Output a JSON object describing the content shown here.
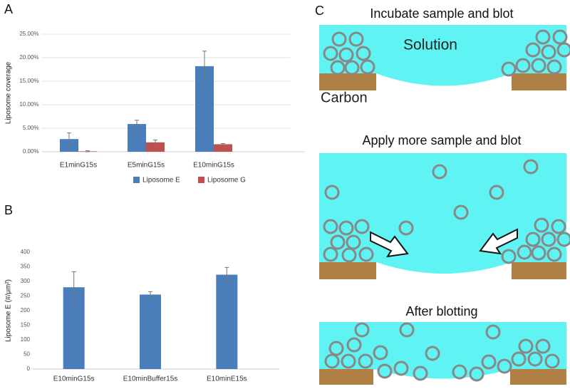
{
  "chart_data": [
    {
      "type": "bar",
      "panel_label": "A",
      "ylabel": "Liposome coverage",
      "categories": [
        "E1minG15s",
        "E5minG15s",
        "E10minG15s"
      ],
      "series": [
        {
          "name": "Liposome E",
          "color": "#4a7ebb",
          "values": [
            2.7,
            5.9,
            18.2
          ],
          "errors": [
            1.3,
            0.8,
            3.2
          ]
        },
        {
          "name": "Liposome G",
          "color": "#c0504d",
          "values": [
            0.1,
            2.0,
            1.6
          ],
          "errors": [
            0.1,
            0.5,
            0.15
          ]
        }
      ],
      "ylim": [
        0,
        25
      ],
      "yticks": [
        {
          "value": 0,
          "label": "0.00%"
        },
        {
          "value": 5,
          "label": "5.00%"
        },
        {
          "value": 10,
          "label": "10.00%"
        },
        {
          "value": 15,
          "label": "15.00%"
        },
        {
          "value": 20,
          "label": "20.00%"
        },
        {
          "value": 25,
          "label": "25.00%"
        }
      ],
      "grid": true,
      "legend": "bottom"
    },
    {
      "type": "bar",
      "panel_label": "B",
      "ylabel": "Liposome E (#/μm²)",
      "categories": [
        "E10minG15s",
        "E10minBuffer15s",
        "E10minE15s"
      ],
      "series": [
        {
          "color": "#4a7ebb",
          "values": [
            280,
            255,
            323
          ],
          "errors": [
            53,
            10,
            25
          ]
        }
      ],
      "ylim": [
        0,
        400
      ],
      "yticks": [
        0,
        50,
        100,
        150,
        200,
        250,
        300,
        350,
        400
      ],
      "grid": false
    }
  ],
  "diagram": {
    "panel_label": "C",
    "step_titles": [
      "Incubate sample and blot",
      "Apply more sample and blot",
      "After blotting"
    ],
    "solution_label": "Solution",
    "carbon_label": "Carbon"
  }
}
